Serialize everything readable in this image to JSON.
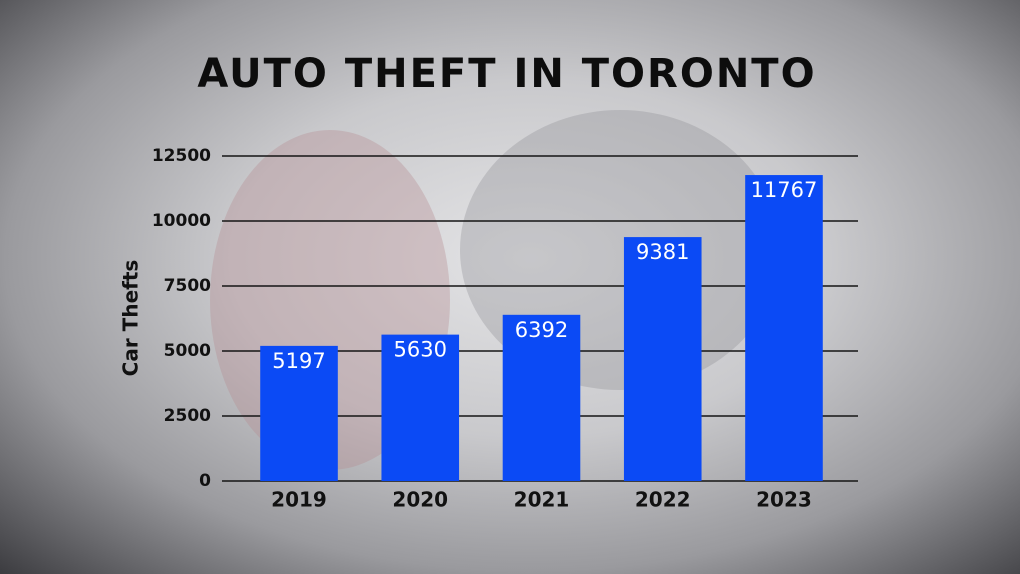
{
  "chart_data": {
    "type": "bar",
    "title": "AUTO THEFT IN TORONTO",
    "y_label": "Car Thefts",
    "categories": [
      "2019",
      "2020",
      "2021",
      "2022",
      "2023"
    ],
    "values": [
      5197,
      5630,
      6392,
      9381,
      11767
    ],
    "color": "#0b4af5",
    "ylim": [
      0,
      12500
    ],
    "yticks": [
      0,
      2500,
      5000,
      7500,
      10000,
      12500
    ],
    "grid": true
  }
}
